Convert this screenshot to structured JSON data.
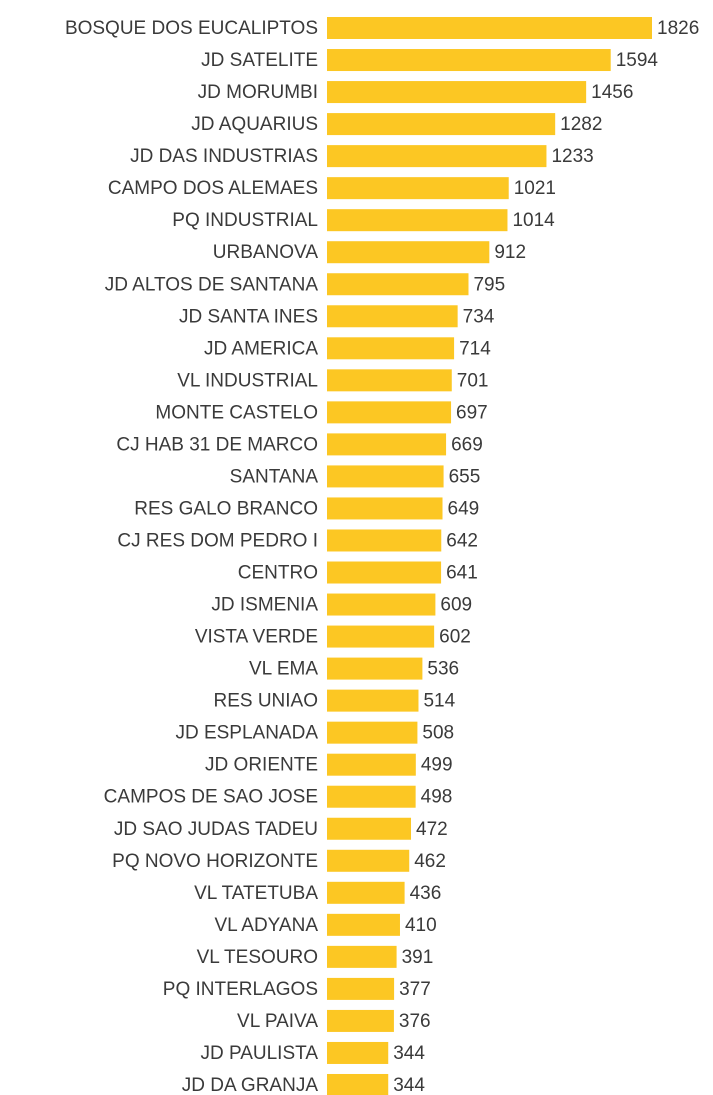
{
  "chart_data": {
    "type": "barh",
    "color": "#fcc723",
    "categories": [
      "BOSQUE DOS EUCALIPTOS",
      "JD SATELITE",
      "JD MORUMBI",
      "JD AQUARIUS",
      "JD DAS INDUSTRIAS",
      "CAMPO DOS ALEMAES",
      "PQ INDUSTRIAL",
      "URBANOVA",
      "JD ALTOS DE SANTANA",
      "JD SANTA INES",
      "JD AMERICA",
      "VL INDUSTRIAL",
      "MONTE CASTELO",
      "CJ HAB 31 DE MARCO",
      "SANTANA",
      "RES GALO BRANCO",
      "CJ RES DOM PEDRO I",
      "CENTRO",
      "JD ISMENIA",
      "VISTA VERDE",
      "VL EMA",
      "RES UNIAO",
      "JD ESPLANADA",
      "JD ORIENTE",
      "CAMPOS DE SAO JOSE",
      "JD SAO JUDAS TADEU",
      "PQ NOVO HORIZONTE",
      "VL TATETUBA",
      "VL ADYANA",
      "VL TESOURO",
      "PQ INTERLAGOS",
      "VL PAIVA",
      "JD PAULISTA",
      "JD DA GRANJA"
    ],
    "values": [
      1826,
      1594,
      1456,
      1282,
      1233,
      1021,
      1014,
      912,
      795,
      734,
      714,
      701,
      697,
      669,
      655,
      649,
      642,
      641,
      609,
      602,
      536,
      514,
      508,
      499,
      498,
      472,
      462,
      436,
      410,
      391,
      377,
      376,
      344,
      344
    ]
  }
}
